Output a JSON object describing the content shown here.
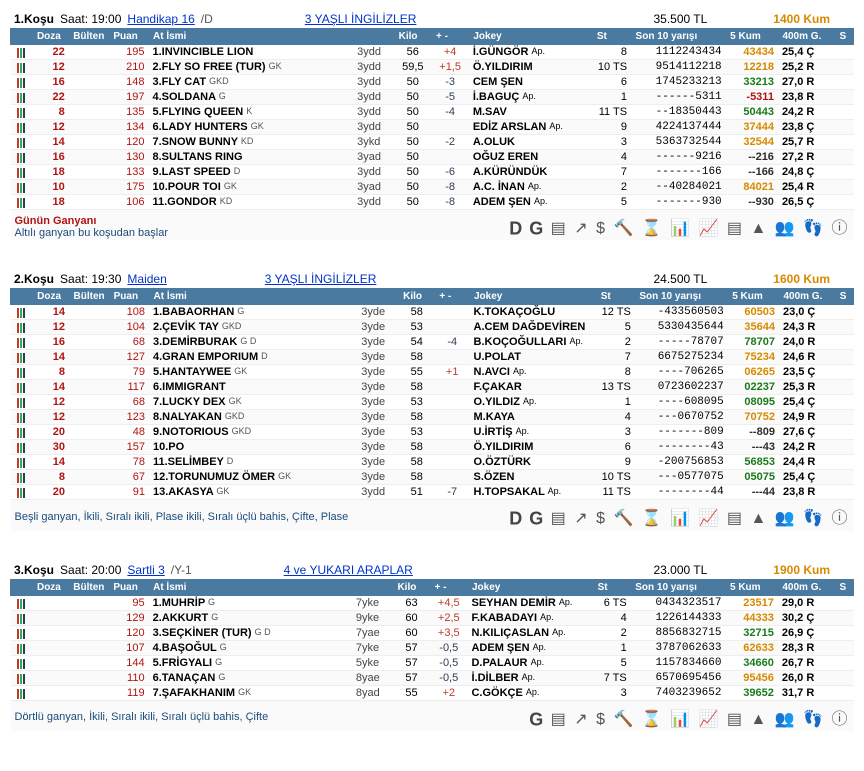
{
  "colors": {
    "header_bg": "#4b7aa1",
    "header_fg": "#ffffff",
    "link": "#0033cc",
    "red": "#b01414",
    "orange": "#d68a00",
    "plus": "#c0392b",
    "minus": "#2c3e50",
    "kum5_palette": [
      "#d68a00",
      "#1a7a1a",
      "#b01414",
      "#2c2c2c"
    ]
  },
  "columns": [
    "",
    "Doza",
    "Bülten",
    "Puan",
    "At İsmi",
    "",
    "Kilo",
    "+ -",
    "Jokey",
    "St",
    "Son 10 yarışı",
    "5 Kum",
    "400m G.",
    "S"
  ],
  "races": [
    {
      "idx": 1,
      "num": "1.Koşu",
      "time": "19:00",
      "cond": "Handikap 16",
      "cond_suffix": "/D",
      "cat": "3 YAŞLI İNGİLİZLER",
      "prize": "35.500 TL",
      "dist": "1400 Kum",
      "footer_left1": "Günün Ganyanı",
      "footer_left2": "Altılı ganyan bu koşudan başlar",
      "dg": "D G",
      "rows": [
        {
          "doza": "22",
          "bulten": "",
          "puan": "195",
          "name": "1.INVINCIBLE LION",
          "sup": "",
          "age": "3ydd",
          "kilo": "56",
          "pm": "+4",
          "jokey": "İ.GÜNGÖR",
          "ap": "Ap.",
          "st": "8",
          "son10": "1112243434",
          "kum5": "43434",
          "kc": "#d68a00",
          "g400": "25,4 Ç"
        },
        {
          "doza": "12",
          "bulten": "",
          "puan": "210",
          "name": "2.FLY SO FREE (TUR)",
          "sup": "GK",
          "age": "3ydd",
          "kilo": "59,5",
          "pm": "+1,5",
          "jokey": "Ö.YILDIRIM",
          "ap": "",
          "st": "10 TS",
          "son10": "9514112218",
          "kum5": "12218",
          "kc": "#d68a00",
          "g400": "25,2 R"
        },
        {
          "doza": "16",
          "bulten": "",
          "puan": "148",
          "name": "3.FLY CAT",
          "sup": "GKD",
          "age": "3ydd",
          "kilo": "50",
          "pm": "-3",
          "jokey": "CEM ŞEN",
          "ap": "",
          "st": "6",
          "son10": "1745233213",
          "kum5": "33213",
          "kc": "#1a7a1a",
          "g400": "27,0 R"
        },
        {
          "doza": "22",
          "bulten": "",
          "puan": "197",
          "name": "4.SOLDANA",
          "sup": "G",
          "age": "3ydd",
          "kilo": "50",
          "pm": "-5",
          "jokey": "İ.BAGUÇ",
          "ap": "Ap.",
          "st": "1",
          "son10": "------5311",
          "kum5": "-5311",
          "kc": "#b01414",
          "g400": "23,8 R"
        },
        {
          "doza": "8",
          "bulten": "",
          "puan": "135",
          "name": "5.FLYING QUEEN",
          "sup": "K",
          "age": "3ydd",
          "kilo": "50",
          "pm": "-4",
          "jokey": "M.SAV",
          "ap": "",
          "st": "11 TS",
          "son10": "--18350443",
          "kum5": "50443",
          "kc": "#1a7a1a",
          "g400": "24,2 R"
        },
        {
          "doza": "12",
          "bulten": "",
          "puan": "134",
          "name": "6.LADY HUNTERS",
          "sup": "GK",
          "age": "3ydd",
          "kilo": "50",
          "pm": "",
          "jokey": "EDİZ ARSLAN",
          "ap": "Ap.",
          "st": "9",
          "son10": "4224137444",
          "kum5": "37444",
          "kc": "#d68a00",
          "g400": "23,8 Ç"
        },
        {
          "doza": "14",
          "bulten": "",
          "puan": "120",
          "name": "7.SNOW BUNNY",
          "sup": "KD",
          "age": "3ykd",
          "kilo": "50",
          "pm": "-2",
          "jokey": "A.OLUK",
          "ap": "",
          "st": "3",
          "son10": "5363732544",
          "kum5": "32544",
          "kc": "#d68a00",
          "g400": "25,7 R"
        },
        {
          "doza": "16",
          "bulten": "",
          "puan": "130",
          "name": "8.SULTANS RING",
          "sup": "",
          "age": "3yad",
          "kilo": "50",
          "pm": "",
          "jokey": "OĞUZ EREN",
          "ap": "",
          "st": "4",
          "son10": "------9216",
          "kum5": "--216",
          "kc": "#2c2c2c",
          "g400": "27,2 R"
        },
        {
          "doza": "18",
          "bulten": "",
          "puan": "133",
          "name": "9.LAST SPEED",
          "sup": "D",
          "age": "3ydd",
          "kilo": "50",
          "pm": "-6",
          "jokey": "A.KÜRÜNDÜK",
          "ap": "",
          "st": "7",
          "son10": "-------166",
          "kum5": "--166",
          "kc": "#2c2c2c",
          "g400": "24,8 Ç"
        },
        {
          "doza": "10",
          "bulten": "",
          "puan": "175",
          "name": "10.POUR TOI",
          "sup": "GK",
          "age": "3yad",
          "kilo": "50",
          "pm": "-8",
          "jokey": "A.C. İNAN",
          "ap": "Ap.",
          "st": "2",
          "son10": "--40284021",
          "kum5": "84021",
          "kc": "#d68a00",
          "g400": "25,4 R"
        },
        {
          "doza": "18",
          "bulten": "",
          "puan": "106",
          "name": "11.GONDOR",
          "sup": "KD",
          "age": "3ydd",
          "kilo": "50",
          "pm": "-8",
          "jokey": "ADEM ŞEN",
          "ap": "Ap.",
          "st": "5",
          "son10": "-------930",
          "kum5": "--930",
          "kc": "#2c2c2c",
          "g400": "26,5 Ç"
        }
      ]
    },
    {
      "idx": 2,
      "num": "2.Koşu",
      "time": "19:30",
      "cond": "Maiden",
      "cond_suffix": "",
      "cat": "3 YAŞLI İNGİLİZLER",
      "prize": "24.500 TL",
      "dist": "1600 Kum",
      "footer_left1": "",
      "footer_left2": "Beşli ganyan, İkili, Sıralı ikili, Plase ikili, Sıralı üçlü bahis, Çifte, Plase",
      "dg": "D G",
      "rows": [
        {
          "doza": "14",
          "bulten": "",
          "puan": "108",
          "name": "1.BABAORHAN",
          "sup": "G",
          "age": "3yde",
          "kilo": "58",
          "pm": "",
          "jokey": "K.TOKAÇOĞLU",
          "ap": "",
          "st": "12 TS",
          "son10": "-433560503",
          "kum5": "60503",
          "kc": "#d68a00",
          "g400": "23,0 Ç"
        },
        {
          "doza": "12",
          "bulten": "",
          "puan": "104",
          "name": "2.ÇEVİK TAY",
          "sup": "GKD",
          "age": "3yde",
          "kilo": "53",
          "pm": "",
          "jokey": "A.CEM DAĞDEVİREN",
          "ap": "",
          "st": "5",
          "son10": "5330435644",
          "kum5": "35644",
          "kc": "#d68a00",
          "g400": "24,3 R"
        },
        {
          "doza": "16",
          "bulten": "",
          "puan": "68",
          "name": "3.DEMİRBURAK",
          "sup": "G D",
          "age": "3yde",
          "kilo": "54",
          "pm": "-4",
          "jokey": "B.KOÇOĞULLARI",
          "ap": "Ap.",
          "st": "2",
          "son10": "-----78707",
          "kum5": "78707",
          "kc": "#1a7a1a",
          "g400": "24,0 R"
        },
        {
          "doza": "14",
          "bulten": "",
          "puan": "127",
          "name": "4.GRAN EMPORIUM",
          "sup": "D",
          "age": "3yde",
          "kilo": "58",
          "pm": "",
          "jokey": "U.POLAT",
          "ap": "",
          "st": "7",
          "son10": "6675275234",
          "kum5": "75234",
          "kc": "#d68a00",
          "g400": "24,6 R"
        },
        {
          "doza": "8",
          "bulten": "",
          "puan": "79",
          "name": "5.HANTAYWEE",
          "sup": "GK",
          "age": "3yde",
          "kilo": "55",
          "pm": "+1",
          "jokey": "N.AVCI",
          "ap": "Ap.",
          "st": "8",
          "son10": "----706265",
          "kum5": "06265",
          "kc": "#d68a00",
          "g400": "23,5 Ç"
        },
        {
          "doza": "14",
          "bulten": "",
          "puan": "117",
          "name": "6.IMMIGRANT",
          "sup": "",
          "age": "3yde",
          "kilo": "58",
          "pm": "",
          "jokey": "F.ÇAKAR",
          "ap": "",
          "st": "13 TS",
          "son10": "0723602237",
          "kum5": "02237",
          "kc": "#1a7a1a",
          "g400": "25,3 R"
        },
        {
          "doza": "12",
          "bulten": "",
          "puan": "68",
          "name": "7.LUCKY DEX",
          "sup": "GK",
          "age": "3yde",
          "kilo": "53",
          "pm": "",
          "jokey": "O.YILDIZ",
          "ap": "Ap.",
          "st": "1",
          "son10": "----608095",
          "kum5": "08095",
          "kc": "#1a7a1a",
          "g400": "25,4 Ç"
        },
        {
          "doza": "12",
          "bulten": "",
          "puan": "123",
          "name": "8.NALYAKAN",
          "sup": "GKD",
          "age": "3yde",
          "kilo": "58",
          "pm": "",
          "jokey": "M.KAYA",
          "ap": "",
          "st": "4",
          "son10": "---0670752",
          "kum5": "70752",
          "kc": "#d68a00",
          "g400": "24,9 R"
        },
        {
          "doza": "20",
          "bulten": "",
          "puan": "48",
          "name": "9.NOTORIOUS",
          "sup": "GKD",
          "age": "3yde",
          "kilo": "53",
          "pm": "",
          "jokey": "U.İRTİŞ",
          "ap": "Ap.",
          "st": "3",
          "son10": "-------809",
          "kum5": "--809",
          "kc": "#2c2c2c",
          "g400": "27,6 Ç"
        },
        {
          "doza": "30",
          "bulten": "",
          "puan": "157",
          "name": "10.PO",
          "sup": "",
          "age": "3yde",
          "kilo": "58",
          "pm": "",
          "jokey": "Ö.YILDIRIM",
          "ap": "",
          "st": "6",
          "son10": "--------43",
          "kum5": "---43",
          "kc": "#2c2c2c",
          "g400": "24,2 R"
        },
        {
          "doza": "14",
          "bulten": "",
          "puan": "78",
          "name": "11.SELİMBEY",
          "sup": "D",
          "age": "3yde",
          "kilo": "58",
          "pm": "",
          "jokey": "O.ÖZTÜRK",
          "ap": "",
          "st": "9",
          "son10": "-200756853",
          "kum5": "56853",
          "kc": "#1a7a1a",
          "g400": "24,4 R"
        },
        {
          "doza": "8",
          "bulten": "",
          "puan": "67",
          "name": "12.TORUNUMUZ ÖMER",
          "sup": "GK",
          "age": "3yde",
          "kilo": "58",
          "pm": "",
          "jokey": "S.ÖZEN",
          "ap": "",
          "st": "10 TS",
          "son10": "---0577075",
          "kum5": "05075",
          "kc": "#1a7a1a",
          "g400": "25,4 Ç"
        },
        {
          "doza": "20",
          "bulten": "",
          "puan": "91",
          "name": "13.AKASYA",
          "sup": "GK",
          "age": "3ydd",
          "kilo": "51",
          "pm": "-7",
          "jokey": "H.TOPSAKAL",
          "ap": "Ap.",
          "st": "11 TS",
          "son10": "--------44",
          "kum5": "---44",
          "kc": "#2c2c2c",
          "g400": "23,8 R"
        }
      ]
    },
    {
      "idx": 3,
      "num": "3.Koşu",
      "time": "20:00",
      "cond": "Sartli 3",
      "cond_suffix": "/Y-1",
      "cat": "4 ve YUKARI ARAPLAR",
      "prize": "23.000 TL",
      "dist": "1900 Kum",
      "footer_left1": "",
      "footer_left2": "Dörtlü ganyan, İkili, Sıralı ikili, Sıralı üçlü bahis, Çifte",
      "dg": "G",
      "rows": [
        {
          "doza": "",
          "bulten": "",
          "puan": "95",
          "name": "1.MUHRİP",
          "sup": "G",
          "age": "7yke",
          "kilo": "63",
          "pm": "+4,5",
          "jokey": "SEYHAN DEMİR",
          "ap": "Ap.",
          "st": "6 TS",
          "son10": "0434323517",
          "kum5": "23517",
          "kc": "#d68a00",
          "g400": "29,0 R"
        },
        {
          "doza": "",
          "bulten": "",
          "puan": "129",
          "name": "2.AKKURT",
          "sup": "G",
          "age": "9yke",
          "kilo": "60",
          "pm": "+2,5",
          "jokey": "F.KABADAYI",
          "ap": "Ap.",
          "st": "4",
          "son10": "1226144333",
          "kum5": "44333",
          "kc": "#d68a00",
          "g400": "30,2 Ç"
        },
        {
          "doza": "",
          "bulten": "",
          "puan": "120",
          "name": "3.SEÇKİNER (TUR)",
          "sup": "G D",
          "age": "7yae",
          "kilo": "60",
          "pm": "+3,5",
          "jokey": "N.KILIÇASLAN",
          "ap": "Ap.",
          "st": "2",
          "son10": "8856832715",
          "kum5": "32715",
          "kc": "#1a7a1a",
          "g400": "26,9 Ç"
        },
        {
          "doza": "",
          "bulten": "",
          "puan": "107",
          "name": "4.BAŞOĞUL",
          "sup": "G",
          "age": "7yke",
          "kilo": "57",
          "pm": "-0,5",
          "jokey": "ADEM ŞEN",
          "ap": "Ap.",
          "st": "1",
          "son10": "3787062633",
          "kum5": "62633",
          "kc": "#d68a00",
          "g400": "28,3 R"
        },
        {
          "doza": "",
          "bulten": "",
          "puan": "144",
          "name": "5.FRİGYALI",
          "sup": "G",
          "age": "5yke",
          "kilo": "57",
          "pm": "-0,5",
          "jokey": "D.PALAUR",
          "ap": "Ap.",
          "st": "5",
          "son10": "1157834660",
          "kum5": "34660",
          "kc": "#1a7a1a",
          "g400": "26,7 R"
        },
        {
          "doza": "",
          "bulten": "",
          "puan": "110",
          "name": "6.TANAÇAN",
          "sup": "G",
          "age": "8yae",
          "kilo": "57",
          "pm": "-0,5",
          "jokey": "İ.DİLBER",
          "ap": "Ap.",
          "st": "7 TS",
          "son10": "6570695456",
          "kum5": "95456",
          "kc": "#d68a00",
          "g400": "26,0 R"
        },
        {
          "doza": "",
          "bulten": "",
          "puan": "119",
          "name": "7.ŞAFAKHANIM",
          "sup": "GK",
          "age": "8yad",
          "kilo": "55",
          "pm": "+2",
          "jokey": "C.GÖKÇE",
          "ap": "Ap.",
          "st": "3",
          "son10": "7403239652",
          "kum5": "39652",
          "kc": "#1a7a1a",
          "g400": "31,7 R"
        }
      ]
    }
  ]
}
